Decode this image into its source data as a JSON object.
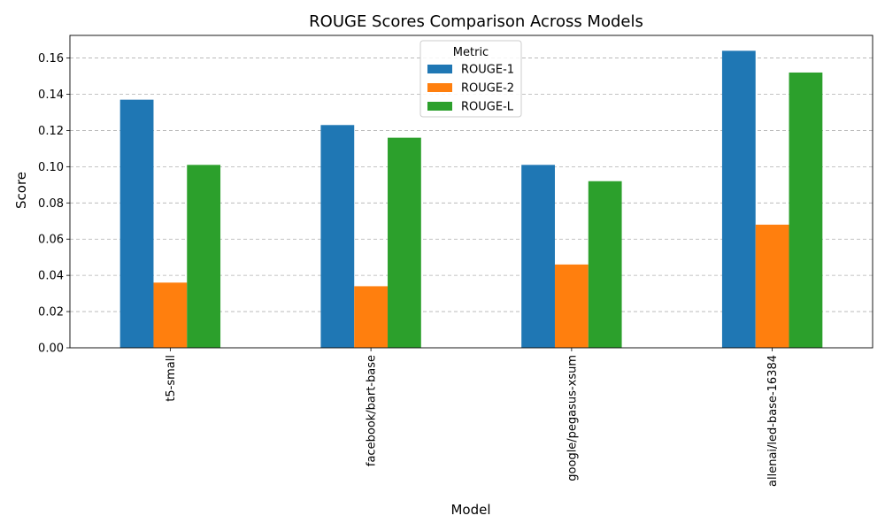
{
  "chart_data": {
    "type": "bar",
    "title": "ROUGE Scores Comparison Across Models",
    "xlabel": "Model",
    "ylabel": "Score",
    "categories": [
      "t5-small",
      "facebook/bart-base",
      "google/pegasus-xsum",
      "allenai/led-base-16384"
    ],
    "series": [
      {
        "name": "ROUGE-1",
        "color": "#1f77b4",
        "values": [
          0.137,
          0.123,
          0.101,
          0.164
        ]
      },
      {
        "name": "ROUGE-2",
        "color": "#ff7f0e",
        "values": [
          0.036,
          0.034,
          0.046,
          0.068
        ]
      },
      {
        "name": "ROUGE-L",
        "color": "#2ca02c",
        "values": [
          0.101,
          0.116,
          0.092,
          0.152
        ]
      }
    ],
    "ylim": [
      0,
      0.1725
    ],
    "yticks": [
      "0.00",
      "0.02",
      "0.04",
      "0.06",
      "0.08",
      "0.10",
      "0.12",
      "0.14",
      "0.16"
    ],
    "grid": "y-dashed",
    "legend": {
      "title": "Metric",
      "placement": "top-center"
    }
  }
}
